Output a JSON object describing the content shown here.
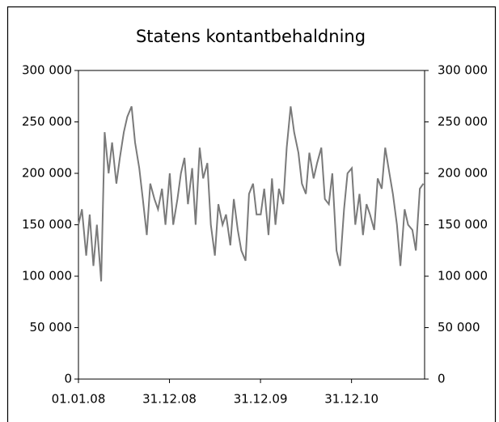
{
  "chart_data": {
    "type": "line",
    "title": "Statens kontantbehaldning",
    "x": [
      "2008-01-01",
      "2008-01-15",
      "2008-02-01",
      "2008-02-15",
      "2008-03-01",
      "2008-03-15",
      "2008-04-01",
      "2008-04-15",
      "2008-05-01",
      "2008-05-15",
      "2008-06-01",
      "2008-06-15",
      "2008-07-01",
      "2008-07-15",
      "2008-08-01",
      "2008-08-15",
      "2008-09-01",
      "2008-09-15",
      "2008-10-01",
      "2008-10-15",
      "2008-11-01",
      "2008-11-15",
      "2008-12-01",
      "2008-12-15",
      "2009-01-01",
      "2009-01-15",
      "2009-02-01",
      "2009-02-15",
      "2009-03-01",
      "2009-03-15",
      "2009-04-01",
      "2009-04-15",
      "2009-05-01",
      "2009-05-15",
      "2009-06-01",
      "2009-06-15",
      "2009-07-01",
      "2009-07-15",
      "2009-08-01",
      "2009-08-15",
      "2009-09-01",
      "2009-09-15",
      "2009-10-01",
      "2009-10-15",
      "2009-11-01",
      "2009-11-15",
      "2009-12-01",
      "2009-12-15",
      "2010-01-01",
      "2010-01-15",
      "2010-02-01",
      "2010-02-15",
      "2010-03-01",
      "2010-03-15",
      "2010-04-01",
      "2010-04-15",
      "2010-05-01",
      "2010-05-15",
      "2010-06-01",
      "2010-06-15",
      "2010-07-01",
      "2010-07-15",
      "2010-08-01",
      "2010-08-15",
      "2010-09-01",
      "2010-09-15",
      "2010-10-01",
      "2010-10-15",
      "2010-11-01",
      "2010-11-15",
      "2010-12-01",
      "2010-12-15",
      "2011-01-01",
      "2011-01-15",
      "2011-02-01",
      "2011-02-15",
      "2011-03-01",
      "2011-03-15",
      "2011-04-01",
      "2011-04-15",
      "2011-05-01",
      "2011-05-15",
      "2011-06-01",
      "2011-06-15",
      "2011-07-01",
      "2011-07-15",
      "2011-08-01",
      "2011-08-15",
      "2011-09-01",
      "2011-09-15",
      "2011-10-01",
      "2011-10-15"
    ],
    "series": [
      {
        "color": "#7a7a7a",
        "values": [
          150000,
          165000,
          120000,
          160000,
          110000,
          150000,
          95000,
          240000,
          200000,
          230000,
          190000,
          215000,
          240000,
          255000,
          265000,
          230000,
          205000,
          175000,
          140000,
          190000,
          175000,
          165000,
          185000,
          150000,
          200000,
          150000,
          175000,
          200000,
          215000,
          170000,
          205000,
          150000,
          225000,
          195000,
          210000,
          150000,
          120000,
          170000,
          150000,
          160000,
          130000,
          175000,
          145000,
          125000,
          115000,
          180000,
          190000,
          160000,
          160000,
          185000,
          140000,
          195000,
          150000,
          185000,
          170000,
          225000,
          265000,
          240000,
          220000,
          190000,
          180000,
          220000,
          195000,
          210000,
          225000,
          175000,
          170000,
          200000,
          125000,
          110000,
          165000,
          200000,
          205000,
          150000,
          180000,
          140000,
          170000,
          160000,
          145000,
          195000,
          185000,
          225000,
          200000,
          180000,
          150000,
          110000,
          165000,
          150000,
          145000,
          125000,
          185000,
          190000
        ]
      }
    ],
    "xlim": [
      "2008-01-01",
      "2011-10-20"
    ],
    "xticks": [
      {
        "value": "2008-01-01",
        "label": "01.01.08"
      },
      {
        "value": "2008-12-31",
        "label": "31.12.08"
      },
      {
        "value": "2009-12-31",
        "label": "31.12.09"
      },
      {
        "value": "2010-12-31",
        "label": "31.12.10"
      }
    ],
    "ylim": [
      0,
      300000
    ],
    "yticks": [
      0,
      {
        "value": 50000,
        "label": "50 000"
      },
      {
        "value": 100000,
        "label": "100 000"
      },
      {
        "value": 150000,
        "label": "150 000"
      },
      {
        "value": 200000,
        "label": "200 000"
      },
      {
        "value": 250000,
        "label": "250 000"
      },
      {
        "value": 300000,
        "label": "300 000"
      }
    ],
    "y2lim": [
      0,
      300000
    ],
    "y2ticks": [
      0,
      {
        "value": 50000,
        "label": "50 000"
      },
      {
        "value": 100000,
        "label": "100 000"
      },
      {
        "value": 150000,
        "label": "150 000"
      },
      {
        "value": 200000,
        "label": "200 000"
      },
      {
        "value": 250000,
        "label": "250 000"
      },
      {
        "value": 300000,
        "label": "300 000"
      }
    ]
  }
}
